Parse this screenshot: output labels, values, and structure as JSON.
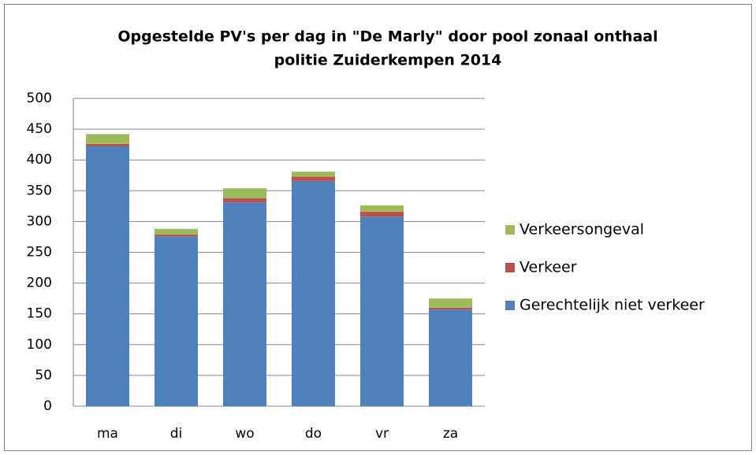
{
  "chart_data": {
    "type": "stacked_bar",
    "title": [
      "Opgestelde PV's per dag in \"De Marly\" door pool zonaal onthaal",
      "politie Zuiderkempen 2014"
    ],
    "categories": [
      "ma",
      "di",
      "wo",
      "do",
      "vr",
      "za"
    ],
    "series": [
      {
        "name": "Gerechtelijk niet verkeer",
        "color": "#4f81bd",
        "values": [
          422,
          276,
          331,
          366,
          308,
          157
        ]
      },
      {
        "name": "Verkeer",
        "color": "#c0504d",
        "values": [
          4,
          3,
          7,
          7,
          8,
          3
        ]
      },
      {
        "name": "Verkeersongeval",
        "color": "#9bbb59",
        "values": [
          16,
          9,
          16,
          8,
          10,
          15
        ]
      }
    ],
    "ylim": [
      0,
      500
    ],
    "yticks": [
      0,
      50,
      100,
      150,
      200,
      250,
      300,
      350,
      400,
      450,
      500
    ],
    "grid": true,
    "legend": "right"
  }
}
